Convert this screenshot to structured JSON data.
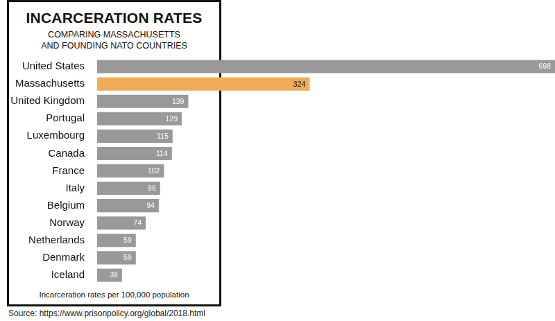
{
  "chart_data": {
    "type": "bar",
    "title": "INCARCERATION RATES",
    "subtitle": [
      "COMPARING MASSACHUSETTS",
      "AND FOUNDING NATO COUNTRIES"
    ],
    "xlabel": "Incarceration rates per 100,000 population",
    "source": "Source: https://www.prisonpolicy.org/global/2018.html",
    "categories": [
      "United States",
      "Massachusetts",
      "United Kingdom",
      "Portugal",
      "Luxembourg",
      "Canada",
      "France",
      "Italy",
      "Belgium",
      "Norway",
      "Netherlands",
      "Denmark",
      "Iceland"
    ],
    "values": [
      698,
      324,
      139,
      129,
      115,
      114,
      102,
      96,
      94,
      74,
      59,
      59,
      38
    ],
    "colors": [
      "#999999",
      "#efac59",
      "#999999",
      "#999999",
      "#999999",
      "#999999",
      "#999999",
      "#999999",
      "#999999",
      "#999999",
      "#999999",
      "#999999",
      "#999999"
    ],
    "xlim": [
      0,
      698
    ],
    "orientation": "horizontal",
    "data_labels": true,
    "grid": false,
    "tick_labels": "y"
  }
}
